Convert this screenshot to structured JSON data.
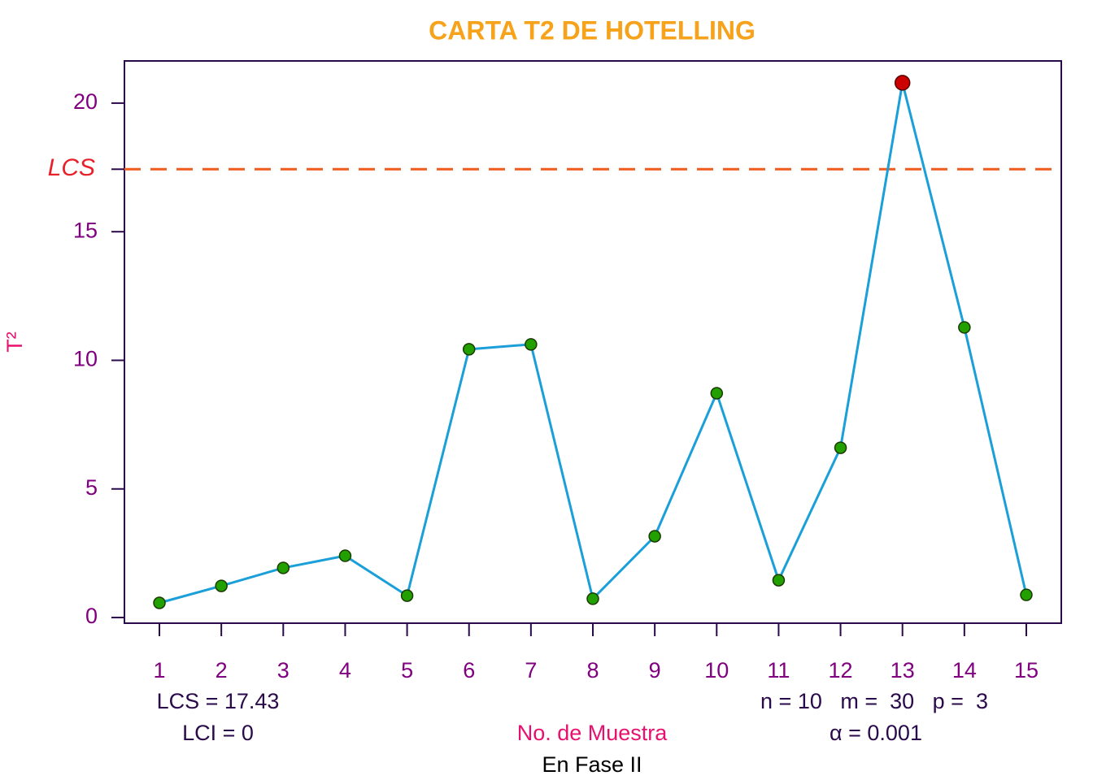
{
  "chart_data": {
    "type": "line",
    "title": "CARTA T2 DE HOTELLING",
    "xlabel": "No. de Muestra",
    "ylabel": "T²",
    "x": [
      1,
      2,
      3,
      4,
      5,
      6,
      7,
      8,
      9,
      10,
      11,
      12,
      13,
      14,
      15
    ],
    "series": [
      {
        "color": "#1a9fd9",
        "values": [
          0.57,
          1.23,
          1.93,
          2.4,
          0.85,
          10.43,
          10.62,
          0.73,
          3.16,
          8.72,
          1.45,
          6.6,
          20.79,
          11.28,
          0.88
        ]
      }
    ],
    "point_color": "#22a000",
    "out_color": "#cc0000",
    "limit": {
      "value": 17.43,
      "label": "LCS",
      "color": "#f05a1e"
    },
    "xlim": [
      0.435,
      15.565
    ],
    "xticks": [
      1,
      2,
      3,
      4,
      5,
      6,
      7,
      8,
      9,
      10,
      11,
      12,
      13,
      14,
      15
    ],
    "ylim": [
      -0.22,
      21.64
    ],
    "yticks": [
      0,
      5,
      10,
      15,
      20
    ],
    "annotations": [
      "LCS = 17.43",
      "LCI = 0",
      "n = 10   m =  30   p =  3",
      "α = 0.001",
      "En Fase II"
    ]
  }
}
